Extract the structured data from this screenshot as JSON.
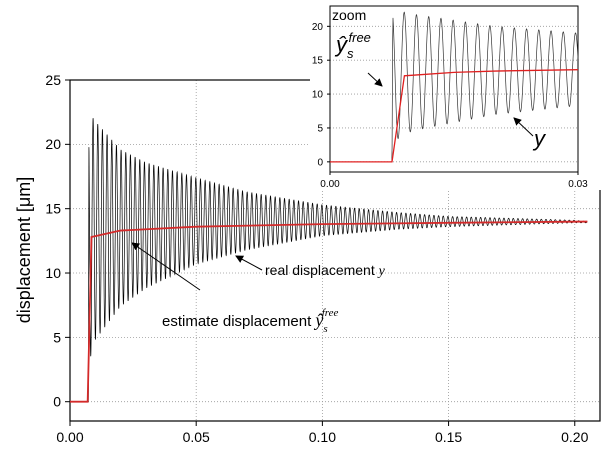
{
  "chart_data": [
    {
      "type": "line",
      "title": "",
      "xlabel": "",
      "ylabel": "displacement [μm]",
      "xlim": [
        0,
        0.21
      ],
      "ylim": [
        -1.5,
        25
      ],
      "xticks": [
        "0.00",
        "0.05",
        "0.10",
        "0.15",
        "0.20"
      ],
      "yticks": [
        "0",
        "5",
        "10",
        "15",
        "20",
        "25"
      ],
      "grid": true,
      "series": [
        {
          "key": "real",
          "color": "#000000",
          "description": "oscillating measured displacement",
          "x": [
            0.0,
            0.0073,
            0.0075,
            0.01,
            0.02,
            0.03,
            0.05,
            0.07,
            0.1,
            0.13,
            0.15,
            0.2,
            0.205
          ],
          "upper": [
            0.0,
            0.0,
            22.5,
            21.8,
            19.6,
            18.6,
            17.4,
            16.3,
            15.3,
            14.7,
            14.4,
            14.1,
            14.0
          ],
          "lower": [
            0.0,
            0.0,
            3.0,
            4.8,
            7.4,
            8.8,
            10.7,
            11.8,
            12.9,
            13.4,
            13.6,
            13.9,
            13.9
          ],
          "period": 0.00185
        },
        {
          "key": "estimate",
          "color": "#d42a2a",
          "description": "estimated free displacement",
          "x": [
            0.0,
            0.007,
            0.0085,
            0.02,
            0.05,
            0.1,
            0.15,
            0.205
          ],
          "values": [
            0.0,
            0.0,
            12.8,
            13.3,
            13.6,
            13.8,
            13.9,
            14.0
          ]
        }
      ],
      "annotations": [
        {
          "text": "real displacement",
          "var": "y",
          "arrow_to_x": 0.063,
          "arrow_to_y": 13.9
        },
        {
          "text": "estimate displacement",
          "var": "ŷ",
          "sub": "s",
          "sup": "free",
          "arrow_to_x": 0.024,
          "arrow_to_y": 13.3
        }
      ]
    },
    {
      "type": "line",
      "title": "zoom",
      "xlim": [
        0,
        0.03
      ],
      "ylim": [
        -1.5,
        23
      ],
      "xticks": [
        "0.00",
        "0.03"
      ],
      "yticks": [
        "0",
        "5",
        "10",
        "15",
        "20"
      ],
      "grid": true,
      "series": [
        {
          "key": "real_zoom",
          "color": "#333333",
          "x": [
            0.0,
            0.0075,
            0.0076,
            0.01,
            0.02,
            0.03
          ],
          "upper": [
            0.0,
            0.0,
            22.5,
            21.8,
            20.0,
            19.0
          ],
          "lower": [
            0.0,
            0.0,
            3.0,
            4.6,
            7.0,
            8.3
          ],
          "period": 0.00148
        },
        {
          "key": "estimate_zoom",
          "color": "#e02020",
          "x": [
            0.0,
            0.0075,
            0.009,
            0.015,
            0.02,
            0.03
          ],
          "values": [
            0.0,
            0.0,
            12.7,
            13.2,
            13.4,
            13.6
          ]
        }
      ],
      "annotations": [
        {
          "var": "ŷ",
          "sub": "s",
          "sup": "free"
        },
        {
          "var": "y"
        }
      ]
    }
  ]
}
